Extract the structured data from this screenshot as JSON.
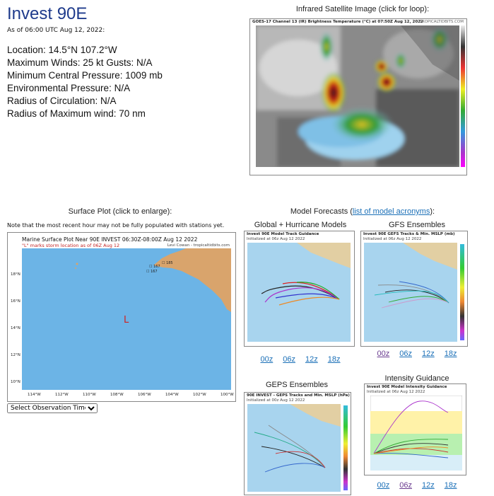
{
  "storm": {
    "name": "Invest 90E",
    "as_of": "As of 06:00 UTC Aug 12, 2022:",
    "stats": [
      "Location: 14.5°N 107.2°W",
      "Maximum Winds: 25 kt  Gusts: N/A",
      "Minimum Central Pressure: 1009 mb",
      "Environmental Pressure: N/A",
      "Radius of Circulation: N/A",
      "Radius of Maximum wind: 70 nm"
    ]
  },
  "satellite": {
    "heading": "Infrared Satellite Image (click for loop):",
    "caption": "GOES-17 Channel 13 (IR) Brightness Temperature (°C) at 07:50Z Aug 12, 2022",
    "credit": "TROPICALTIDBITS.COM"
  },
  "surface": {
    "heading": "Surface Plot (click to enlarge):",
    "note": "Note that the most recent hour may not be fully populated with stations yet.",
    "plot_title": "Marine Surface Plot Near 90E INVEST 06:30Z-08:00Z Aug 12 2022",
    "plot_subtitle": "\"L\" marks storm location as of 06Z Aug 12",
    "credit": "Levi Cowan - tropicaltidbits.com",
    "storm_marker": "L",
    "lat_labels": [
      "18°N",
      "16°N",
      "14°N",
      "12°N",
      "10°N"
    ],
    "lon_labels": [
      "114°W",
      "112°W",
      "110°W",
      "108°W",
      "106°W",
      "104°W",
      "102°W",
      "100°W"
    ],
    "select_label": "Select Observation Time..."
  },
  "models": {
    "heading_prefix": "Model Forecasts (",
    "heading_link": "list of model acronyms",
    "heading_suffix": "):",
    "panels": [
      {
        "title": "Global + Hurricane Models",
        "inner_title": "Invest 90E Model Track Guidance",
        "inner_sub": "Initialized at 06z Aug 12 2022",
        "runs": [
          "00z",
          "06z",
          "12z",
          "18z"
        ]
      },
      {
        "title": "GFS Ensembles",
        "inner_title": "Invest 90E GEFS Tracks & Min. MSLP (mb)",
        "inner_sub": "Initialized at 06z Aug 12 2022",
        "runs": [
          "00z",
          "06z",
          "12z",
          "18z"
        ]
      },
      {
        "title": "GEPS Ensembles",
        "inner_title": "90E INVEST - GEPS Tracks and Min. MSLP (hPa)",
        "inner_sub": "Initialized at 00z Aug 12 2022",
        "runs": []
      },
      {
        "title": "Intensity Guidance",
        "inner_title": "Invest 90E Model Intensity Guidance",
        "inner_sub": "Initialized at 06z Aug 12 2022",
        "runs": [
          "00z",
          "06z",
          "12z",
          "18z"
        ]
      }
    ]
  }
}
